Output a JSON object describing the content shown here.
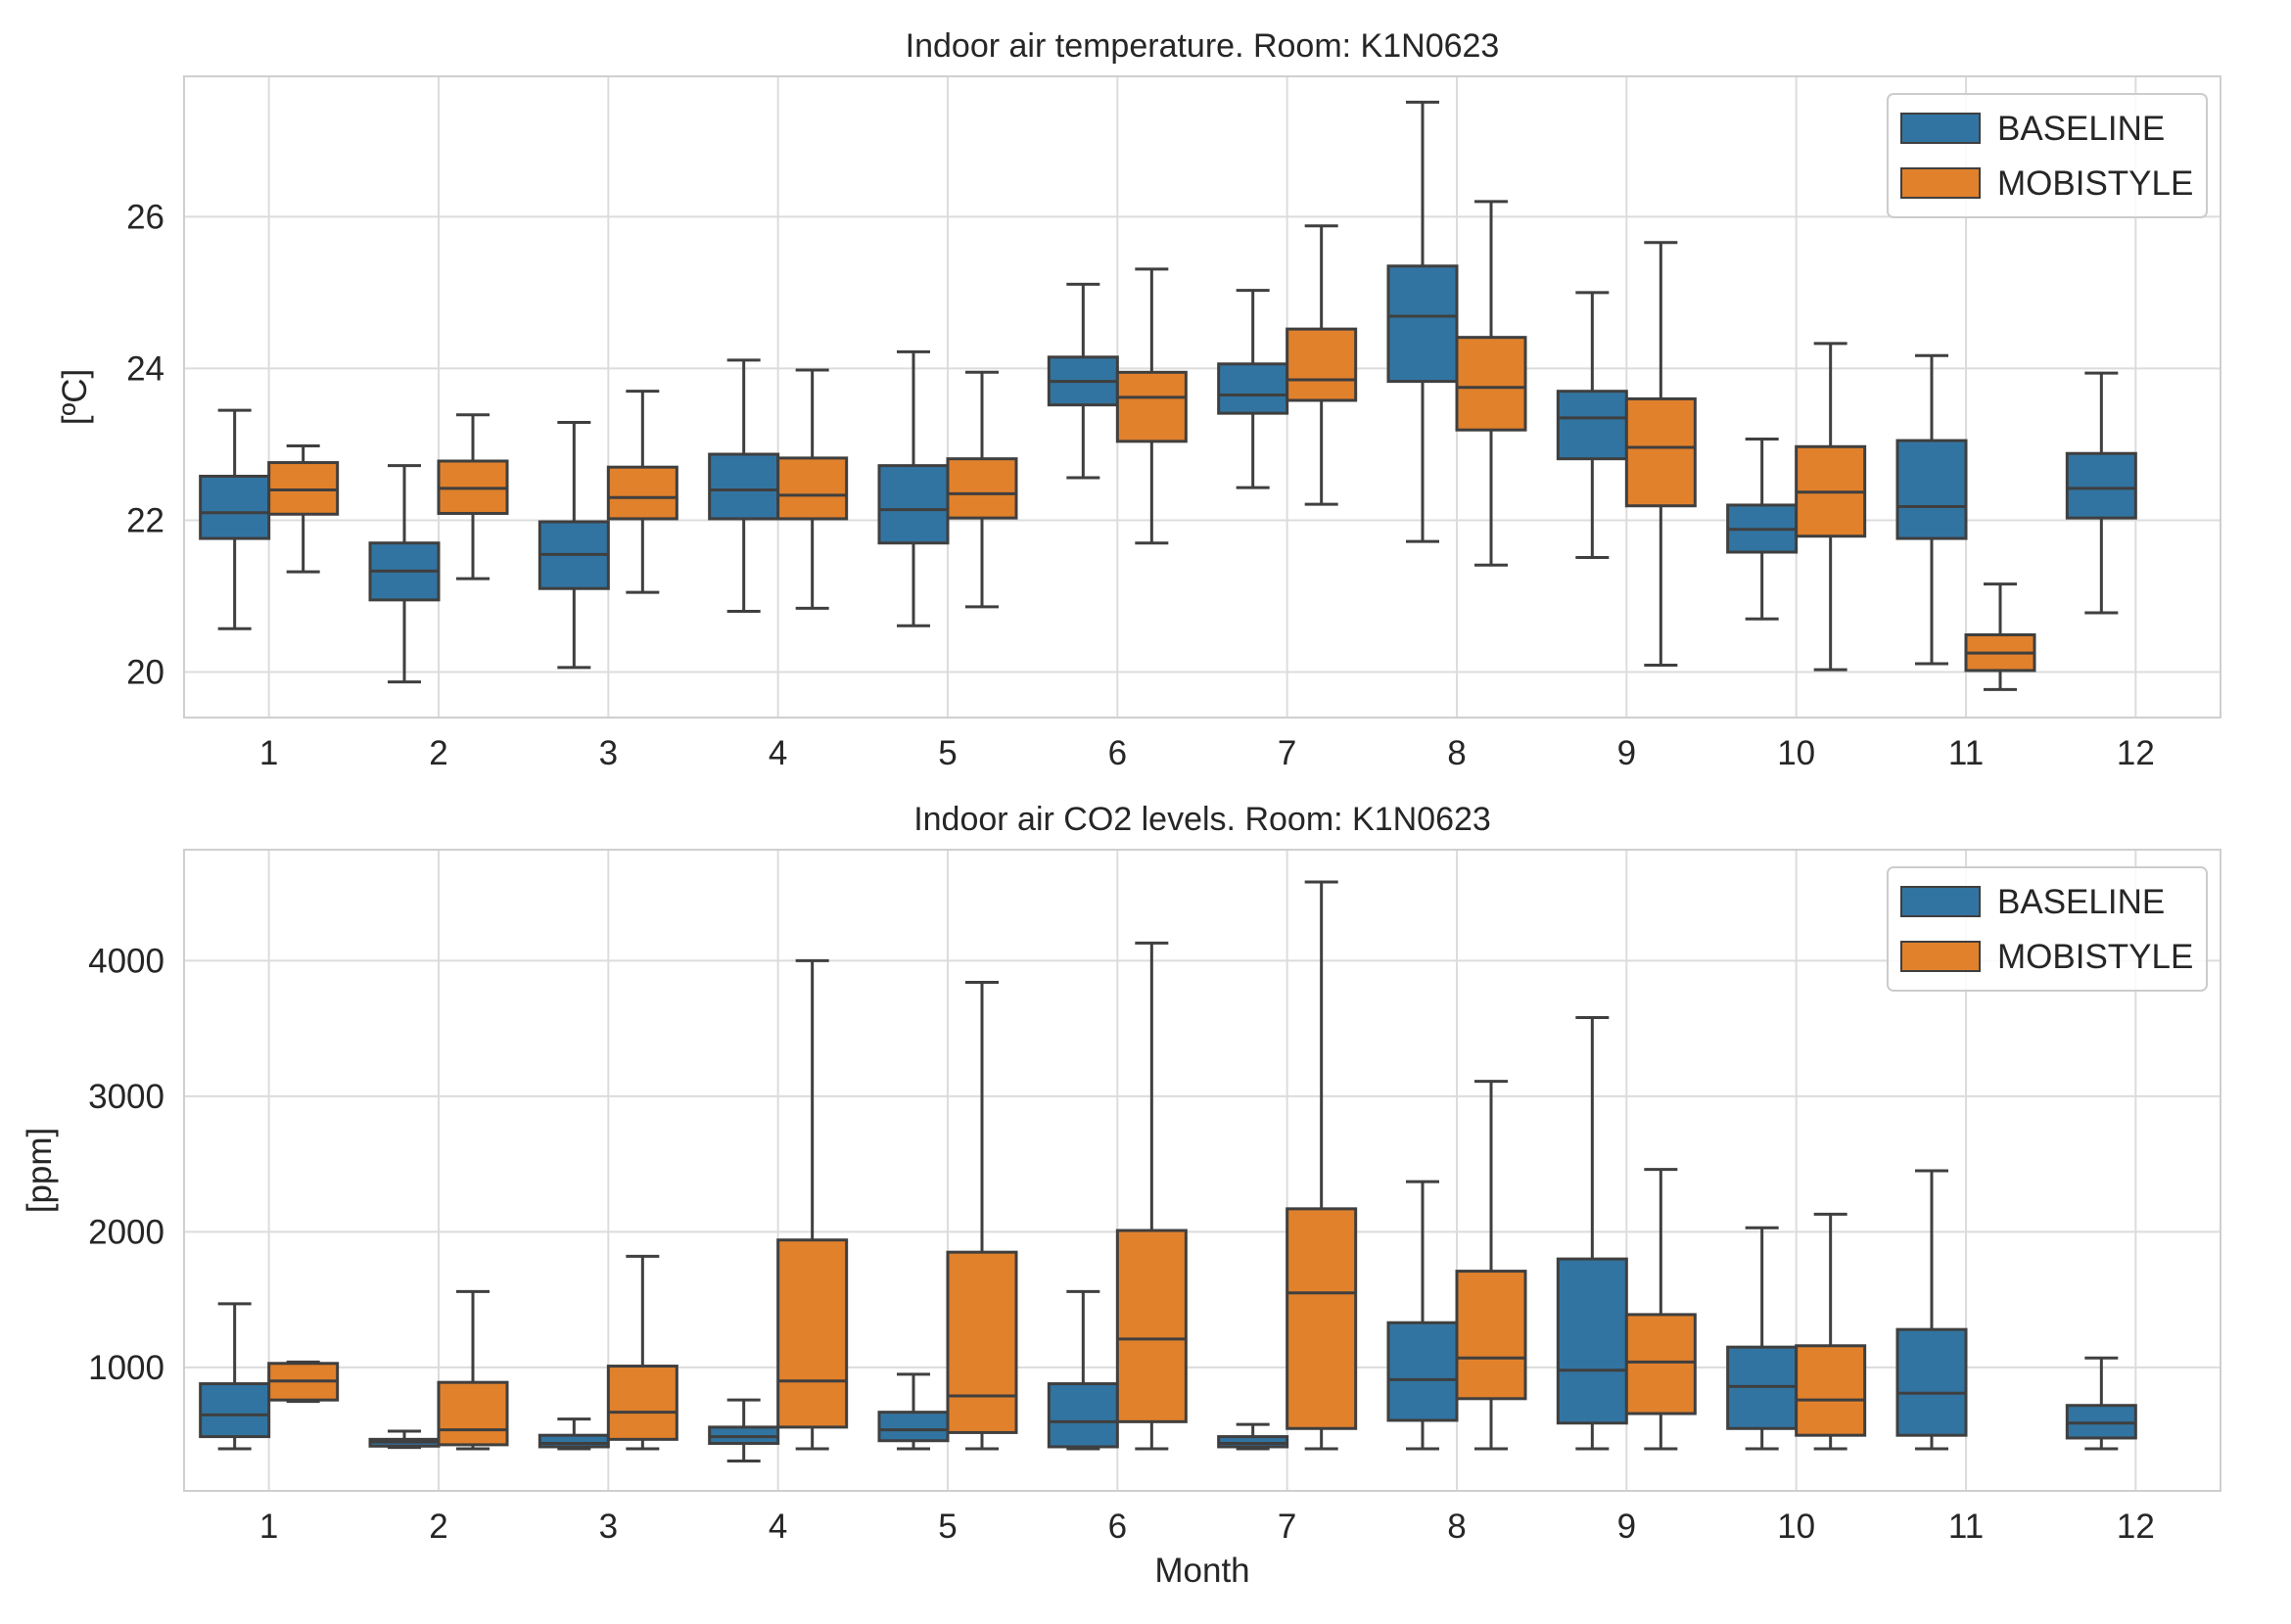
{
  "chart_data": [
    {
      "type": "box",
      "title": "Indoor air temperature. Room: K1N0623",
      "xlabel": "",
      "ylabel": "[ºC]",
      "ylim": [
        19.4,
        27.85
      ],
      "yticks": [
        20,
        22,
        24,
        26
      ],
      "categories": [
        "1",
        "2",
        "3",
        "4",
        "5",
        "6",
        "7",
        "8",
        "9",
        "10",
        "11",
        "12"
      ],
      "grid": true,
      "legend_position": "top-right",
      "colors": {
        "BASELINE": "#3274a1",
        "MOBISTYLE": "#e1812c"
      },
      "series": [
        {
          "name": "BASELINE",
          "boxes": [
            {
              "month": "1",
              "whisker_low": 20.57,
              "q1": 21.76,
              "median": 22.1,
              "q3": 22.58,
              "whisker_high": 23.45
            },
            {
              "month": "2",
              "whisker_low": 19.87,
              "q1": 20.95,
              "median": 21.33,
              "q3": 21.7,
              "whisker_high": 22.72
            },
            {
              "month": "3",
              "whisker_low": 20.06,
              "q1": 21.1,
              "median": 21.55,
              "q3": 21.98,
              "whisker_high": 23.29
            },
            {
              "month": "4",
              "whisker_low": 20.8,
              "q1": 22.02,
              "median": 22.4,
              "q3": 22.87,
              "whisker_high": 24.11
            },
            {
              "month": "5",
              "whisker_low": 20.61,
              "q1": 21.7,
              "median": 22.14,
              "q3": 22.72,
              "whisker_high": 24.22
            },
            {
              "month": "6",
              "whisker_low": 22.56,
              "q1": 23.52,
              "median": 23.83,
              "q3": 24.15,
              "whisker_high": 25.11
            },
            {
              "month": "7",
              "whisker_low": 22.43,
              "q1": 23.41,
              "median": 23.65,
              "q3": 24.06,
              "whisker_high": 25.03
            },
            {
              "month": "8",
              "whisker_low": 21.72,
              "q1": 23.83,
              "median": 24.69,
              "q3": 25.35,
              "whisker_high": 27.51
            },
            {
              "month": "9",
              "whisker_low": 21.51,
              "q1": 22.81,
              "median": 23.35,
              "q3": 23.7,
              "whisker_high": 25.0
            },
            {
              "month": "10",
              "whisker_low": 20.7,
              "q1": 21.58,
              "median": 21.88,
              "q3": 22.2,
              "whisker_high": 23.07
            },
            {
              "month": "11",
              "whisker_low": 20.11,
              "q1": 21.76,
              "median": 22.18,
              "q3": 23.05,
              "whisker_high": 24.17
            },
            {
              "month": "12",
              "whisker_low": 20.78,
              "q1": 22.03,
              "median": 22.42,
              "q3": 22.88,
              "whisker_high": 23.94
            }
          ]
        },
        {
          "name": "MOBISTYLE",
          "boxes": [
            {
              "month": "1",
              "whisker_low": 21.32,
              "q1": 22.08,
              "median": 22.4,
              "q3": 22.76,
              "whisker_high": 22.98
            },
            {
              "month": "2",
              "whisker_low": 21.23,
              "q1": 22.09,
              "median": 22.42,
              "q3": 22.78,
              "whisker_high": 23.39
            },
            {
              "month": "3",
              "whisker_low": 21.05,
              "q1": 22.02,
              "median": 22.3,
              "q3": 22.7,
              "whisker_high": 23.7
            },
            {
              "month": "4",
              "whisker_low": 20.84,
              "q1": 22.02,
              "median": 22.33,
              "q3": 22.82,
              "whisker_high": 23.98
            },
            {
              "month": "5",
              "whisker_low": 20.86,
              "q1": 22.03,
              "median": 22.35,
              "q3": 22.81,
              "whisker_high": 23.95
            },
            {
              "month": "6",
              "whisker_low": 21.7,
              "q1": 23.04,
              "median": 23.62,
              "q3": 23.95,
              "whisker_high": 25.31
            },
            {
              "month": "7",
              "whisker_low": 22.21,
              "q1": 23.58,
              "median": 23.85,
              "q3": 24.52,
              "whisker_high": 25.88
            },
            {
              "month": "8",
              "whisker_low": 21.41,
              "q1": 23.19,
              "median": 23.75,
              "q3": 24.41,
              "whisker_high": 26.2
            },
            {
              "month": "9",
              "whisker_low": 20.09,
              "q1": 22.19,
              "median": 22.96,
              "q3": 23.6,
              "whisker_high": 25.66
            },
            {
              "month": "10",
              "whisker_low": 20.03,
              "q1": 21.79,
              "median": 22.37,
              "q3": 22.97,
              "whisker_high": 24.33
            },
            {
              "month": "11",
              "whisker_low": 19.77,
              "q1": 20.02,
              "median": 20.25,
              "q3": 20.49,
              "whisker_high": 21.16
            }
          ]
        }
      ]
    },
    {
      "type": "box",
      "title": "Indoor air CO2 levels. Room: K1N0623",
      "xlabel": "Month",
      "ylabel": "[ppm]",
      "ylim": [
        90,
        4818
      ],
      "yticks": [
        1000,
        2000,
        3000,
        4000
      ],
      "categories": [
        "1",
        "2",
        "3",
        "4",
        "5",
        "6",
        "7",
        "8",
        "9",
        "10",
        "11",
        "12"
      ],
      "grid": true,
      "legend_position": "top-right",
      "colors": {
        "BASELINE": "#3274a1",
        "MOBISTYLE": "#e1812c"
      },
      "series": [
        {
          "name": "BASELINE",
          "boxes": [
            {
              "month": "1",
              "whisker_low": 400,
              "q1": 490,
              "median": 650,
              "q3": 880,
              "whisker_high": 1470
            },
            {
              "month": "2",
              "whisker_low": 410,
              "q1": 420,
              "median": 450,
              "q3": 470,
              "whisker_high": 530
            },
            {
              "month": "3",
              "whisker_low": 400,
              "q1": 415,
              "median": 440,
              "q3": 500,
              "whisker_high": 620
            },
            {
              "month": "4",
              "whisker_low": 310,
              "q1": 440,
              "median": 490,
              "q3": 560,
              "whisker_high": 760
            },
            {
              "month": "5",
              "whisker_low": 400,
              "q1": 460,
              "median": 540,
              "q3": 670,
              "whisker_high": 950
            },
            {
              "month": "6",
              "whisker_low": 400,
              "q1": 415,
              "median": 600,
              "q3": 880,
              "whisker_high": 1560
            },
            {
              "month": "7",
              "whisker_low": 400,
              "q1": 415,
              "median": 440,
              "q3": 490,
              "whisker_high": 580
            },
            {
              "month": "8",
              "whisker_low": 400,
              "q1": 610,
              "median": 910,
              "q3": 1330,
              "whisker_high": 2370
            },
            {
              "month": "9",
              "whisker_low": 400,
              "q1": 590,
              "median": 980,
              "q3": 1800,
              "whisker_high": 3580
            },
            {
              "month": "10",
              "whisker_low": 400,
              "q1": 550,
              "median": 860,
              "q3": 1150,
              "whisker_high": 2030
            },
            {
              "month": "11",
              "whisker_low": 400,
              "q1": 500,
              "median": 810,
              "q3": 1280,
              "whisker_high": 2450
            },
            {
              "month": "12",
              "whisker_low": 400,
              "q1": 480,
              "median": 590,
              "q3": 720,
              "whisker_high": 1070
            }
          ]
        },
        {
          "name": "MOBISTYLE",
          "boxes": [
            {
              "month": "1",
              "whisker_low": 750,
              "q1": 760,
              "median": 900,
              "q3": 1030,
              "whisker_high": 1040
            },
            {
              "month": "2",
              "whisker_low": 400,
              "q1": 430,
              "median": 540,
              "q3": 890,
              "whisker_high": 1560
            },
            {
              "month": "3",
              "whisker_low": 400,
              "q1": 470,
              "median": 670,
              "q3": 1010,
              "whisker_high": 1820
            },
            {
              "month": "4",
              "whisker_low": 400,
              "q1": 560,
              "median": 900,
              "q3": 1940,
              "whisker_high": 4000
            },
            {
              "month": "5",
              "whisker_low": 400,
              "q1": 520,
              "median": 790,
              "q3": 1850,
              "whisker_high": 3840
            },
            {
              "month": "6",
              "whisker_low": 400,
              "q1": 600,
              "median": 1210,
              "q3": 2010,
              "whisker_high": 4130
            },
            {
              "month": "7",
              "whisker_low": 400,
              "q1": 550,
              "median": 1550,
              "q3": 2170,
              "whisker_high": 4580
            },
            {
              "month": "8",
              "whisker_low": 400,
              "q1": 770,
              "median": 1070,
              "q3": 1710,
              "whisker_high": 3110
            },
            {
              "month": "9",
              "whisker_low": 400,
              "q1": 660,
              "median": 1040,
              "q3": 1390,
              "whisker_high": 2460
            },
            {
              "month": "10",
              "whisker_low": 400,
              "q1": 500,
              "median": 760,
              "q3": 1160,
              "whisker_high": 2130
            }
          ]
        }
      ]
    }
  ]
}
